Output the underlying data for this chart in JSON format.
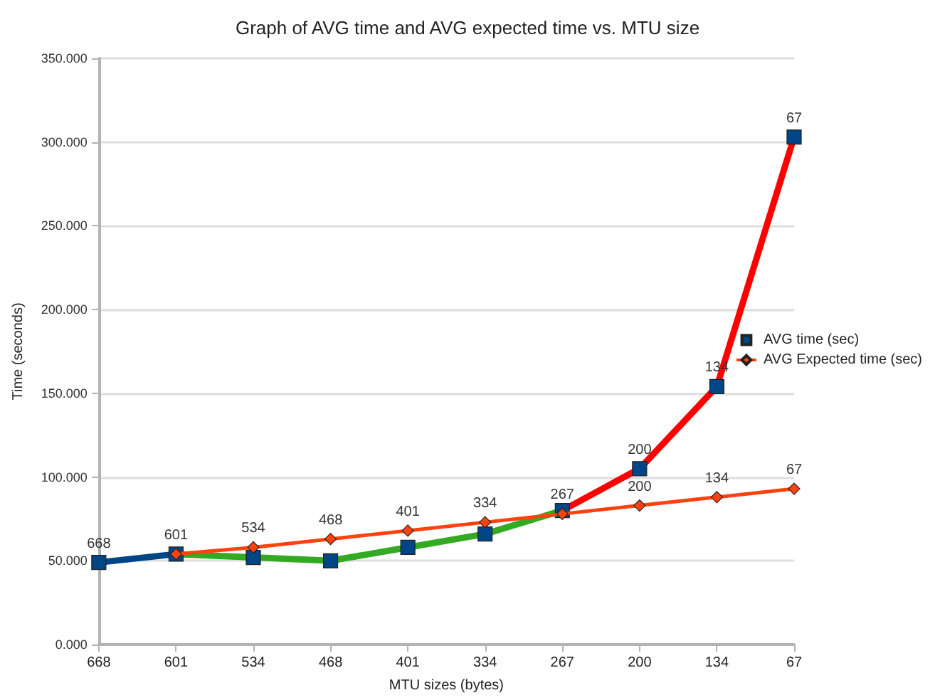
{
  "chart_data": {
    "type": "line",
    "title": "Graph of AVG time and AVG expected time vs. MTU size",
    "xlabel": "MTU sizes (bytes)",
    "ylabel": "Time (seconds)",
    "categories": [
      "668",
      "601",
      "534",
      "468",
      "401",
      "334",
      "267",
      "200",
      "134",
      "67"
    ],
    "series": [
      {
        "name": "AVG time (sec)",
        "color": "#004586",
        "marker": "square",
        "colors": [
          "#004586",
          "#33aa22",
          "#33aa22",
          "#33aa22",
          "#33aa22",
          "#33aa22",
          "#ff0000",
          "#ff0000",
          "#ff0000",
          "#ff0000"
        ],
        "values": [
          49,
          54,
          52,
          50,
          58,
          66,
          80,
          105,
          154,
          303
        ]
      },
      {
        "name": "AVG Expected time (sec)",
        "color": "#ff420e",
        "marker": "diamond",
        "values": [
          null,
          54,
          58,
          63,
          68,
          73,
          78,
          83,
          88,
          93
        ]
      }
    ],
    "annotations": [
      {
        "text": "668",
        "x": "668",
        "y": 49
      },
      {
        "text": "601",
        "x": "601",
        "y": 54
      },
      {
        "text": "534",
        "x": "534",
        "y": 58
      },
      {
        "text": "468",
        "x": "468",
        "y": 63
      },
      {
        "text": "401",
        "x": "401",
        "y": 68
      },
      {
        "text": "334",
        "x": "334",
        "y": 73
      },
      {
        "text": "267",
        "x": "267",
        "y": 78
      },
      {
        "text": "200",
        "x": "200",
        "y": 83
      },
      {
        "text": "134",
        "x": "134",
        "y": 88
      },
      {
        "text": "67",
        "x": "67",
        "y": 93
      },
      {
        "text": "200",
        "x": "200",
        "y": 105
      },
      {
        "text": "134",
        "x": "134",
        "y": 154
      },
      {
        "text": "67",
        "x": "67",
        "y": 303
      }
    ],
    "ylim": [
      0,
      350
    ],
    "yticks": [
      {
        "value": 0,
        "label": "0.000"
      },
      {
        "value": 50,
        "label": "50.000"
      },
      {
        "value": 100,
        "label": "100.000"
      },
      {
        "value": 150,
        "label": "150.000"
      },
      {
        "value": 200,
        "label": "200.000"
      },
      {
        "value": 250,
        "label": "250.000"
      },
      {
        "value": 300,
        "label": "300.000"
      },
      {
        "value": 350,
        "label": "350.000"
      }
    ],
    "grid": "y",
    "legend": "right"
  }
}
